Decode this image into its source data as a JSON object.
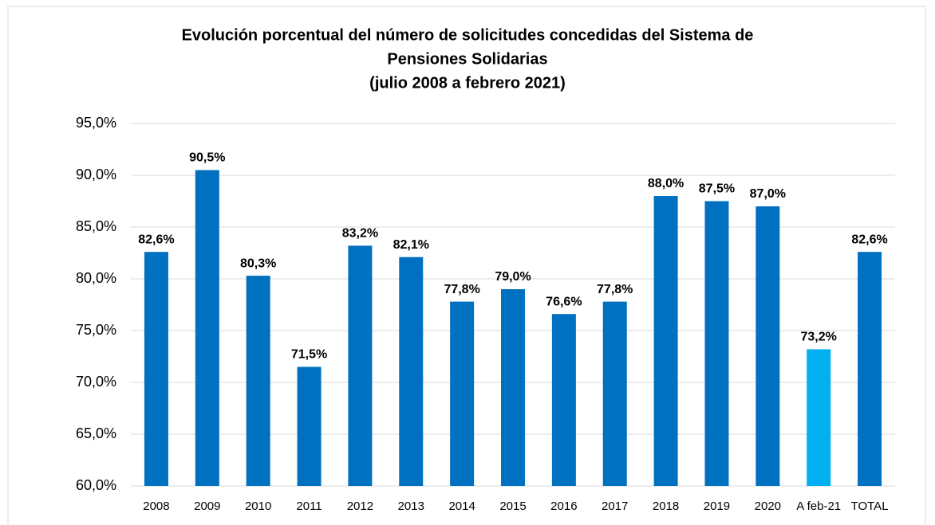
{
  "chart_data": {
    "type": "bar",
    "title": [
      "Evolución porcentual del número de solicitudes concedidas del Sistema de",
      "Pensiones Solidarias",
      "(julio 2008 a febrero 2021)"
    ],
    "categories": [
      "2008",
      "2009",
      "2010",
      "2011",
      "2012",
      "2013",
      "2014",
      "2015",
      "2016",
      "2017",
      "2018",
      "2019",
      "2020",
      "A feb-21",
      "TOTAL"
    ],
    "values": [
      82.6,
      90.5,
      80.3,
      71.5,
      83.2,
      82.1,
      77.8,
      79.0,
      76.6,
      77.8,
      88.0,
      87.5,
      87.0,
      73.2,
      82.6
    ],
    "value_labels": [
      "82,6%",
      "90,5%",
      "80,3%",
      "71,5%",
      "83,2%",
      "82,1%",
      "77,8%",
      "79,0%",
      "76,6%",
      "77,8%",
      "88,0%",
      "87,5%",
      "87,0%",
      "73,2%",
      "82,6%"
    ],
    "colors": [
      "#0070c0",
      "#0070c0",
      "#0070c0",
      "#0070c0",
      "#0070c0",
      "#0070c0",
      "#0070c0",
      "#0070c0",
      "#0070c0",
      "#0070c0",
      "#0070c0",
      "#0070c0",
      "#0070c0",
      "#00b0f0",
      "#0070c0"
    ],
    "ylim": [
      60,
      95
    ],
    "yticks": [
      {
        "value": 60,
        "label": "60,0%"
      },
      {
        "value": 65,
        "label": "65,0%"
      },
      {
        "value": 70,
        "label": "70,0%"
      },
      {
        "value": 75,
        "label": "75,0%"
      },
      {
        "value": 80,
        "label": "80,0%"
      },
      {
        "value": 85,
        "label": "85,0%"
      },
      {
        "value": 90,
        "label": "90,0%"
      },
      {
        "value": 95,
        "label": "95,0%"
      }
    ],
    "grid": true
  }
}
